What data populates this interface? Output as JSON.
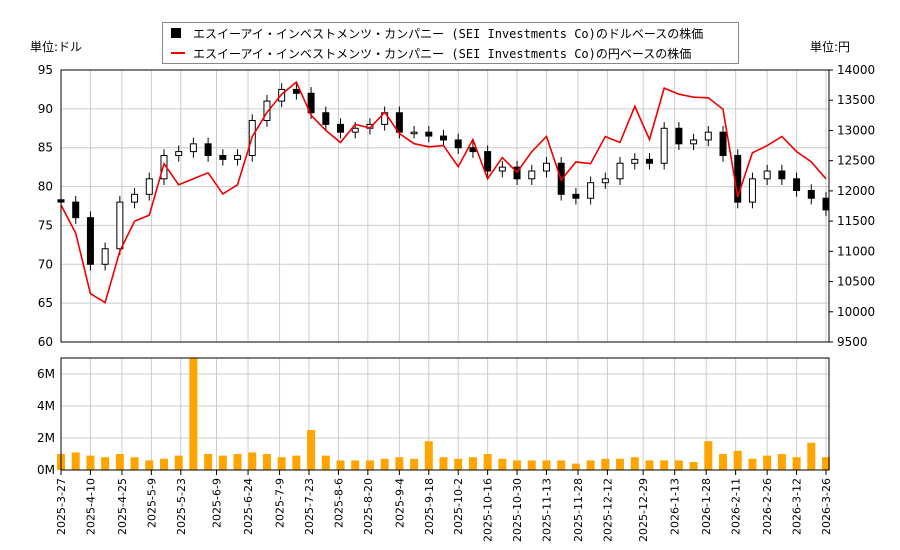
{
  "chart_data": [
    {
      "type": "candlestick+line",
      "legend": [
        "エスイーアイ・インベストメンツ・カンパニー (SEI Investments Co)のドルベースの株価",
        "エスイーアイ・インベストメンツ・カンパニー (SEI Investments Co)の円ベースの株価"
      ],
      "legend_placement": "top",
      "left_unit": "単位:ドル",
      "right_unit": "単位:円",
      "ylim_left": [
        60,
        95
      ],
      "ylim_right": [
        9500,
        14000
      ],
      "yticks_left": [
        60,
        65,
        70,
        75,
        80,
        85,
        90,
        95
      ],
      "yticks_right": [
        9500,
        10000,
        10500,
        11000,
        11500,
        12000,
        12500,
        13000,
        13500,
        14000
      ],
      "grid": true,
      "colors": {
        "usd": "#000000",
        "jpy": "#ee0000",
        "volume": "#ffa500",
        "grid": "#cccccc"
      },
      "dates": [
        "2025-03-27",
        "2025-04-03",
        "2025-04-10",
        "2025-04-17",
        "2025-04-24",
        "2025-05-01",
        "2025-05-08",
        "2025-05-15",
        "2025-05-22",
        "2025-05-29",
        "2025-06-05",
        "2025-06-12",
        "2025-06-19",
        "2025-06-26",
        "2025-07-03",
        "2025-07-10",
        "2025-07-17",
        "2025-07-24",
        "2025-07-31",
        "2025-08-07",
        "2025-08-14",
        "2025-08-21",
        "2025-08-28",
        "2025-09-04",
        "2025-09-11",
        "2025-09-18",
        "2025-09-25",
        "2025-10-02",
        "2025-10-09",
        "2025-10-16",
        "2025-10-23",
        "2025-10-30",
        "2025-11-06",
        "2025-11-13",
        "2025-11-20",
        "2025-11-27",
        "2025-12-04",
        "2025-12-11",
        "2025-12-18",
        "2025-12-25",
        "2026-01-01",
        "2026-01-08",
        "2026-01-15",
        "2026-01-22",
        "2026-01-29",
        "2026-02-05",
        "2026-02-12",
        "2026-02-19",
        "2026-02-26",
        "2026-03-05",
        "2026-03-12",
        "2026-03-19",
        "2026-03-26"
      ],
      "usd_close": [
        78,
        76,
        70,
        72,
        78,
        79,
        81,
        84,
        84.5,
        85.5,
        84,
        83.5,
        84,
        88.5,
        91,
        92.5,
        92,
        89.5,
        88,
        87,
        87.5,
        88,
        89.5,
        87,
        87,
        86.5,
        86,
        85,
        84.5,
        82,
        82.5,
        81,
        82,
        83,
        79,
        78.5,
        80.5,
        81,
        83,
        83.5,
        83,
        87.5,
        85.5,
        86,
        87,
        84,
        78,
        81,
        82,
        81,
        79.5,
        78.5,
        77
      ],
      "jpy_close": [
        11767,
        11300,
        10300,
        10150,
        11000,
        11500,
        11600,
        12450,
        12100,
        12200,
        12300,
        11950,
        12100,
        12900,
        13300,
        13600,
        13800,
        13250,
        13000,
        12800,
        13100,
        13040,
        13300,
        12950,
        12780,
        12730,
        12750,
        12400,
        12850,
        12200,
        12550,
        12310,
        12650,
        12900,
        12180,
        12480,
        12450,
        12900,
        12800,
        13400,
        12850,
        13700,
        13600,
        13550,
        13540,
        13350,
        11900,
        12630,
        12750,
        12900,
        12650,
        12480,
        12200
      ]
    },
    {
      "type": "bar",
      "ylim": [
        0,
        7
      ],
      "ytick_labels": [
        "0M",
        "2M",
        "4M",
        "6M"
      ],
      "ytick_values": [
        0,
        2,
        4,
        6
      ],
      "unit": "M",
      "volume_millions": [
        1.0,
        1.1,
        0.9,
        0.8,
        1.0,
        0.8,
        0.6,
        0.7,
        0.9,
        7.0,
        1.0,
        0.9,
        1.0,
        1.1,
        1.0,
        0.8,
        0.9,
        2.5,
        0.9,
        0.6,
        0.6,
        0.6,
        0.7,
        0.8,
        0.7,
        1.8,
        0.8,
        0.7,
        0.8,
        1.0,
        0.7,
        0.6,
        0.6,
        0.6,
        0.6,
        0.4,
        0.6,
        0.7,
        0.7,
        0.8,
        0.6,
        0.6,
        0.6,
        0.5,
        1.8,
        1.0,
        1.2,
        0.7,
        0.9,
        1.0,
        0.8,
        1.7,
        0.8
      ]
    }
  ],
  "xaxis": {
    "ticks": [
      "2025-3-27",
      "2025-4-10",
      "2025-4-25",
      "2025-5-9",
      "2025-5-23",
      "2025-6-9",
      "2025-6-24",
      "2025-7-9",
      "2025-7-23",
      "2025-8-6",
      "2025-8-20",
      "2025-9-4",
      "2025-9-18",
      "2025-10-2",
      "2025-10-16",
      "2025-10-30",
      "2025-11-13",
      "2025-11-28",
      "2025-12-12",
      "2025-12-29",
      "2026-1-13",
      "2026-1-28",
      "2026-2-11",
      "2026-2-26",
      "2026-3-12",
      "2026-3-26"
    ]
  }
}
